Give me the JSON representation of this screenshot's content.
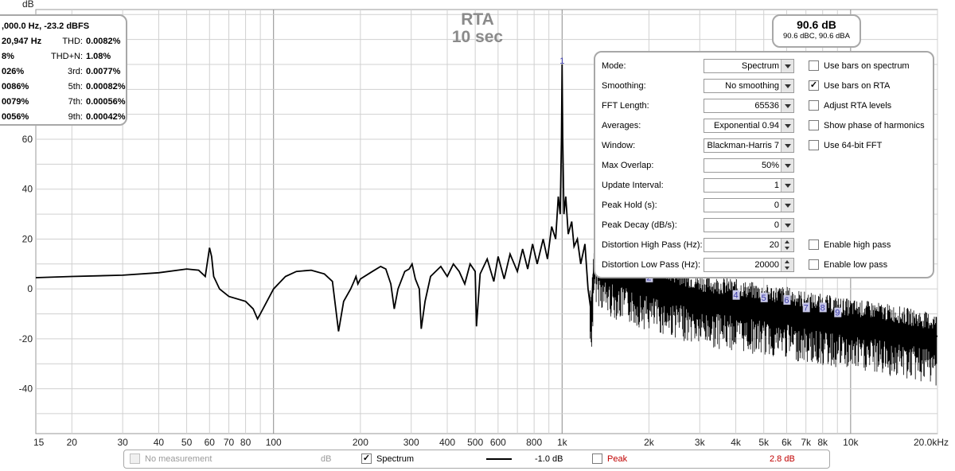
{
  "rta_title": {
    "line1": "RTA",
    "line2": "10 sec"
  },
  "y_unit": "dB",
  "spl": {
    "main": "90.6 dB",
    "sub": "90.6 dBC, 90.6 dBA"
  },
  "distortion_panel": {
    "top_line": ",000.0 Hz, -23.2 dBFS",
    "rows": [
      {
        "left": "20,947 Hz",
        "label": "THD:",
        "value": "0.0082%"
      },
      {
        "left": "8%",
        "label": "THD+N:",
        "value": "1.08%"
      },
      {
        "left": "026%",
        "label": "3rd:",
        "value": "0.0077%"
      },
      {
        "left": "0086%",
        "label": "5th:",
        "value": "0.00082%"
      },
      {
        "left": "0079%",
        "label": "7th:",
        "value": "0.00056%"
      },
      {
        "left": "0056%",
        "label": "9th:",
        "value": "0.00042%"
      }
    ]
  },
  "settings": {
    "rows": [
      {
        "label": "Mode:",
        "value": "Spectrum",
        "kind": "select"
      },
      {
        "label": "Smoothing:",
        "value": "No  smoothing",
        "kind": "select"
      },
      {
        "label": "FFT Length:",
        "value": "65536",
        "kind": "select"
      },
      {
        "label": "Averages:",
        "value": "Exponential 0.94",
        "kind": "select"
      },
      {
        "label": "Window:",
        "value": "Blackman-Harris 7",
        "kind": "select"
      },
      {
        "label": "Max Overlap:",
        "value": "50%",
        "kind": "select"
      },
      {
        "label": "Update Interval:",
        "value": "1",
        "kind": "select"
      },
      {
        "label": "Peak Hold (s):",
        "value": "0",
        "kind": "select"
      },
      {
        "label": "Peak Decay (dB/s):",
        "value": "0",
        "kind": "select"
      },
      {
        "label": "Distortion High Pass (Hz):",
        "value": "20",
        "kind": "spin"
      },
      {
        "label": "Distortion Low Pass (Hz):",
        "value": "20000",
        "kind": "spin"
      }
    ],
    "checkboxes": [
      {
        "label": "Use bars on spectrum",
        "checked": false
      },
      {
        "label": "Use bars on RTA",
        "checked": true
      },
      {
        "label": "Adjust RTA levels",
        "checked": false
      },
      {
        "label": "Show phase of harmonics",
        "checked": false
      },
      {
        "label": "Use 64-bit FFT",
        "checked": false
      },
      {
        "label": "Enable high pass",
        "checked": false
      },
      {
        "label": "Enable low pass",
        "checked": false
      }
    ]
  },
  "legend": {
    "no_measurement": "No measurement",
    "no_measurement_unit": "dB",
    "spectrum": "Spectrum",
    "spectrum_value": "-1.0 dB",
    "spectrum_checked": true,
    "peak": "Peak",
    "peak_value": "2.8 dB",
    "peak_checked": false
  },
  "colors": {
    "grid": "#d0d0d0",
    "grid_major": "#8a8a8a",
    "trace": "#000000",
    "peak_text": "#c00000",
    "harmonic_label": "#3a3aa8"
  },
  "chart_data": {
    "type": "line",
    "xscale": "log",
    "xlim": [
      15,
      20000
    ],
    "ylim": [
      -58,
      112
    ],
    "ylabel": "dB",
    "x_ticks": [
      15,
      20,
      30,
      40,
      50,
      60,
      70,
      80,
      100,
      200,
      300,
      400,
      500,
      600,
      800,
      1000,
      2000,
      3000,
      4000,
      5000,
      6000,
      7000,
      8000,
      10000,
      20000
    ],
    "x_tick_labels": [
      "15",
      "20",
      "30",
      "40",
      "50",
      "60",
      "70",
      "80",
      "100",
      "200",
      "300",
      "400",
      "500",
      "600",
      "800",
      "1k",
      "2k",
      "3k",
      "4k",
      "5k",
      "6k",
      "7k",
      "8k",
      "10k",
      "20.0kHz"
    ],
    "y_ticks": [
      -40,
      -20,
      0,
      20,
      40,
      60
    ],
    "harmonic_markers": [
      {
        "label": "1",
        "x": 1000,
        "y": 90
      },
      {
        "label": "2",
        "x": 2000,
        "y": 3
      },
      {
        "label": "4",
        "x": 4000,
        "y": -4
      },
      {
        "label": "5",
        "x": 5000,
        "y": -5
      },
      {
        "label": "6",
        "x": 6000,
        "y": -6
      },
      {
        "label": "7",
        "x": 7000,
        "y": -9
      },
      {
        "label": "8",
        "x": 8000,
        "y": -9
      },
      {
        "label": "9",
        "x": 9000,
        "y": -11
      }
    ],
    "series": [
      {
        "values": [
          [
            15,
            4.5
          ],
          [
            20,
            5
          ],
          [
            30,
            5.5
          ],
          [
            40,
            6.5
          ],
          [
            50,
            8
          ],
          [
            55,
            7.5
          ],
          [
            58,
            5
          ],
          [
            60,
            16.5
          ],
          [
            61,
            13
          ],
          [
            62,
            5
          ],
          [
            65,
            0
          ],
          [
            70,
            -3
          ],
          [
            80,
            -5
          ],
          [
            85,
            -8
          ],
          [
            88,
            -12
          ],
          [
            90,
            -10
          ],
          [
            100,
            0
          ],
          [
            110,
            5
          ],
          [
            120,
            7
          ],
          [
            135,
            7.5
          ],
          [
            150,
            6
          ],
          [
            160,
            3
          ],
          [
            168,
            -17
          ],
          [
            175,
            -5
          ],
          [
            185,
            0
          ],
          [
            190,
            3
          ],
          [
            193,
            5
          ],
          [
            196,
            2
          ],
          [
            200,
            4
          ],
          [
            220,
            7
          ],
          [
            235,
            9
          ],
          [
            245,
            8
          ],
          [
            255,
            2
          ],
          [
            262,
            -8
          ],
          [
            270,
            0
          ],
          [
            285,
            7
          ],
          [
            295,
            8
          ],
          [
            302,
            10
          ],
          [
            310,
            4
          ],
          [
            320,
            0
          ],
          [
            325,
            -16
          ],
          [
            335,
            -5
          ],
          [
            350,
            5
          ],
          [
            380,
            9
          ],
          [
            400,
            5
          ],
          [
            420,
            10
          ],
          [
            440,
            7
          ],
          [
            460,
            2
          ],
          [
            480,
            10
          ],
          [
            500,
            7
          ],
          [
            505,
            -15
          ],
          [
            520,
            6
          ],
          [
            550,
            12
          ],
          [
            580,
            3
          ],
          [
            600,
            13
          ],
          [
            630,
            4
          ],
          [
            660,
            14
          ],
          [
            700,
            7
          ],
          [
            730,
            16
          ],
          [
            760,
            8
          ],
          [
            790,
            18
          ],
          [
            820,
            10
          ],
          [
            860,
            20
          ],
          [
            890,
            12
          ],
          [
            920,
            25
          ],
          [
            950,
            20
          ],
          [
            970,
            37
          ],
          [
            985,
            30
          ],
          [
            995,
            60
          ],
          [
            1000,
            90
          ],
          [
            1005,
            60
          ],
          [
            1015,
            30
          ],
          [
            1030,
            37
          ],
          [
            1050,
            22
          ],
          [
            1080,
            27
          ],
          [
            1100,
            17
          ],
          [
            1130,
            20
          ],
          [
            1160,
            10
          ],
          [
            1200,
            18
          ],
          [
            1230,
            0
          ],
          [
            1260,
            -9
          ],
          [
            1300,
            15
          ],
          [
            1400,
            10
          ],
          [
            1500,
            8
          ],
          [
            1700,
            6
          ],
          [
            2000,
            3
          ],
          [
            2500,
            0
          ],
          [
            3000,
            -3
          ],
          [
            4000,
            -5
          ],
          [
            5000,
            -7
          ],
          [
            6000,
            -8
          ],
          [
            7000,
            -10
          ],
          [
            8000,
            -11
          ],
          [
            10000,
            -13
          ],
          [
            12000,
            -14
          ],
          [
            15000,
            -16
          ],
          [
            20000,
            -19
          ]
        ]
      }
    ]
  }
}
